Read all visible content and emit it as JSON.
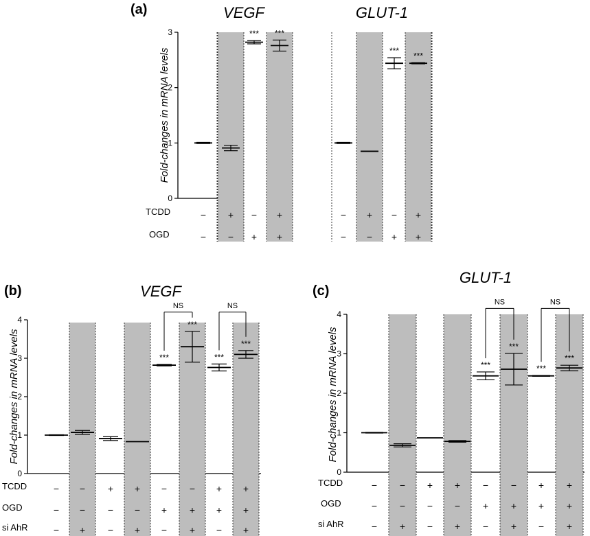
{
  "chart_data": [
    {
      "panel": "(a)",
      "type": "bar",
      "ylabel": "Fold-changes in mRNA levels",
      "ylim": [
        0,
        3
      ],
      "yticks": [
        0,
        1,
        2,
        3
      ],
      "row_labels": [
        "TCDD",
        "OGD"
      ],
      "groups": [
        {
          "title": "VEGF",
          "bars": [
            {
              "value": 1.0,
              "err": 0.01,
              "shaded": false,
              "sig": "",
              "conditions": [
                "−",
                "−"
              ]
            },
            {
              "value": 0.91,
              "err": 0.05,
              "shaded": true,
              "sig": "",
              "conditions": [
                "+",
                "−"
              ]
            },
            {
              "value": 2.82,
              "err": 0.03,
              "shaded": false,
              "sig": "***",
              "conditions": [
                "−",
                "+"
              ]
            },
            {
              "value": 2.76,
              "err": 0.1,
              "shaded": true,
              "sig": "***",
              "conditions": [
                "+",
                "+"
              ]
            }
          ]
        },
        {
          "title": "GLUT-1",
          "bars": [
            {
              "value": 1.0,
              "err": 0.01,
              "shaded": false,
              "sig": "",
              "conditions": [
                "−",
                "−"
              ]
            },
            {
              "value": 0.85,
              "err": 0.0,
              "shaded": true,
              "sig": "",
              "conditions": [
                "+",
                "−"
              ]
            },
            {
              "value": 2.44,
              "err": 0.1,
              "shaded": false,
              "sig": "***",
              "conditions": [
                "−",
                "+"
              ]
            },
            {
              "value": 2.44,
              "err": 0.01,
              "shaded": true,
              "sig": "***",
              "conditions": [
                "+",
                "+"
              ]
            }
          ]
        }
      ]
    },
    {
      "panel": "(b)",
      "type": "bar",
      "title": "VEGF",
      "ylabel": "Fold-changes in mRNA levels",
      "ylim": [
        0,
        4
      ],
      "yticks": [
        0,
        1,
        2,
        3,
        4
      ],
      "row_labels": [
        "TCDD",
        "OGD",
        "si AhR"
      ],
      "bars": [
        {
          "value": 1.0,
          "err": 0.01,
          "shaded": false,
          "sig": "",
          "conditions": [
            "−",
            "−",
            "−"
          ]
        },
        {
          "value": 1.07,
          "err": 0.05,
          "shaded": true,
          "sig": "",
          "conditions": [
            "−",
            "−",
            "+"
          ]
        },
        {
          "value": 0.91,
          "err": 0.05,
          "shaded": false,
          "sig": "",
          "conditions": [
            "+",
            "−",
            "−"
          ]
        },
        {
          "value": 0.83,
          "err": 0.0,
          "shaded": true,
          "sig": "",
          "conditions": [
            "+",
            "−",
            "+"
          ]
        },
        {
          "value": 2.82,
          "err": 0.02,
          "shaded": false,
          "sig": "***",
          "conditions": [
            "−",
            "+",
            "−"
          ]
        },
        {
          "value": 3.3,
          "err": 0.4,
          "shaded": true,
          "sig": "***",
          "conditions": [
            "−",
            "+",
            "+"
          ]
        },
        {
          "value": 2.76,
          "err": 0.09,
          "shaded": false,
          "sig": "***",
          "conditions": [
            "+",
            "+",
            "−"
          ]
        },
        {
          "value": 3.1,
          "err": 0.1,
          "shaded": true,
          "sig": "***",
          "conditions": [
            "+",
            "+",
            "+"
          ]
        }
      ],
      "comparisons": [
        {
          "a": 4,
          "b": 5,
          "label": "NS",
          "y": 4.2
        },
        {
          "a": 6,
          "b": 7,
          "label": "NS",
          "y": 4.2
        }
      ]
    },
    {
      "panel": "(c)",
      "type": "bar",
      "title": "GLUT-1",
      "ylabel": "Fold-changes in mRNA levels",
      "ylim": [
        0,
        4
      ],
      "yticks": [
        0,
        1,
        2,
        3,
        4
      ],
      "row_labels": [
        "TCDD",
        "OGD",
        "si AhR"
      ],
      "bars": [
        {
          "value": 1.0,
          "err": 0.01,
          "shaded": false,
          "sig": "",
          "conditions": [
            "−",
            "−",
            "−"
          ]
        },
        {
          "value": 0.68,
          "err": 0.04,
          "shaded": true,
          "sig": "",
          "conditions": [
            "−",
            "−",
            "+"
          ]
        },
        {
          "value": 0.87,
          "err": 0.0,
          "shaded": false,
          "sig": "",
          "conditions": [
            "+",
            "−",
            "−"
          ]
        },
        {
          "value": 0.78,
          "err": 0.02,
          "shaded": true,
          "sig": "",
          "conditions": [
            "+",
            "−",
            "+"
          ]
        },
        {
          "value": 2.44,
          "err": 0.1,
          "shaded": false,
          "sig": "***",
          "conditions": [
            "−",
            "+",
            "−"
          ]
        },
        {
          "value": 2.61,
          "err": 0.4,
          "shaded": true,
          "sig": "***",
          "conditions": [
            "−",
            "+",
            "+"
          ]
        },
        {
          "value": 2.44,
          "err": 0.01,
          "shaded": false,
          "sig": "***",
          "conditions": [
            "+",
            "+",
            "−"
          ]
        },
        {
          "value": 2.64,
          "err": 0.07,
          "shaded": true,
          "sig": "***",
          "conditions": [
            "+",
            "+",
            "+"
          ]
        }
      ],
      "comparisons": [
        {
          "a": 4,
          "b": 5,
          "label": "NS",
          "y": 4.15
        },
        {
          "a": 6,
          "b": 7,
          "label": "NS",
          "y": 4.15
        }
      ]
    }
  ]
}
